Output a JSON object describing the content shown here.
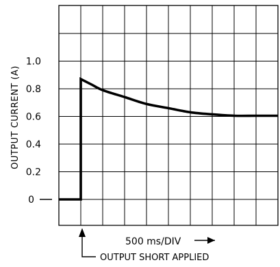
{
  "chart_data": {
    "type": "line",
    "ylabel": "OUTPUT CURRENT (A)",
    "xlabel": "500 ms/DIV",
    "annotation": "OUTPUT SHORT APPLIED",
    "grid": true,
    "x_divisions": 10,
    "x_units": "divisions (500 ms/div)",
    "xlim": [
      0,
      10
    ],
    "ylim": [
      -0.2,
      1.4
    ],
    "y_ticks": [
      {
        "value": 0,
        "label": "0"
      },
      {
        "value": 0.2,
        "label": "0.2"
      },
      {
        "value": 0.4,
        "label": "0.4"
      },
      {
        "value": 0.6,
        "label": "0.6"
      },
      {
        "value": 0.8,
        "label": "0.8"
      },
      {
        "value": 1.0,
        "label": "1.0"
      }
    ],
    "series": [
      {
        "x": [
          0,
          1,
          1,
          1.5,
          2,
          3,
          4,
          5,
          6,
          7,
          8,
          9,
          10
        ],
        "y": [
          0,
          0,
          0.87,
          0.83,
          0.79,
          0.74,
          0.69,
          0.66,
          0.63,
          0.615,
          0.605,
          0.605,
          0.605
        ]
      }
    ]
  }
}
